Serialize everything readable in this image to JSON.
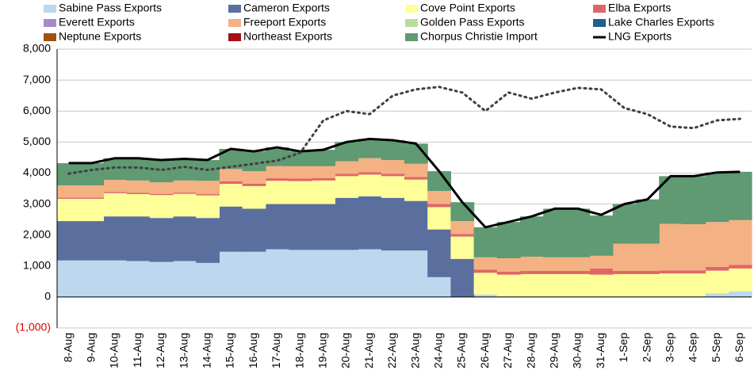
{
  "chart_data": {
    "type": "stacked-area-line",
    "categories": [
      "8-Aug",
      "9-Aug",
      "10-Aug",
      "11-Aug",
      "12-Aug",
      "13-Aug",
      "14-Aug",
      "15-Aug",
      "16-Aug",
      "17-Aug",
      "18-Aug",
      "19-Aug",
      "20-Aug",
      "21-Aug",
      "22-Aug",
      "23-Aug",
      "24-Aug",
      "25-Aug",
      "26-Aug",
      "27-Aug",
      "28-Aug",
      "29-Aug",
      "30-Aug",
      "31-Aug",
      "1-Sep",
      "2-Sep",
      "3-Sep",
      "4-Sep",
      "5-Sep",
      "6-Sep"
    ],
    "ylim": [
      -1000,
      8000
    ],
    "yticks": [
      {
        "value": -1000,
        "label": "(1,000)"
      },
      0,
      {
        "value": 1000,
        "label": "1,000"
      },
      {
        "value": 2000,
        "label": "2,000"
      },
      {
        "value": 3000,
        "label": "3,000"
      },
      {
        "value": 4000,
        "label": "4,000"
      },
      {
        "value": 5000,
        "label": "5,000"
      },
      {
        "value": 6000,
        "label": "6,000"
      },
      {
        "value": 7000,
        "label": "7,000"
      },
      {
        "value": 8000,
        "label": "8,000"
      }
    ],
    "grid": true,
    "legend": "top",
    "series": [
      {
        "name": "Sabine Pass Exports",
        "color": "#bdd7ee",
        "values": [
          1180,
          1180,
          1180,
          1160,
          1130,
          1160,
          1100,
          1460,
          1460,
          1540,
          1520,
          1520,
          1520,
          1540,
          1500,
          1500,
          640,
          0,
          80,
          20,
          20,
          20,
          20,
          20,
          20,
          20,
          20,
          20,
          120,
          180
        ]
      },
      {
        "name": "Cameron Exports",
        "color": "#5b6f9f",
        "values": [
          1270,
          1270,
          1420,
          1440,
          1420,
          1440,
          1450,
          1460,
          1390,
          1460,
          1480,
          1480,
          1680,
          1710,
          1700,
          1600,
          1540,
          1230,
          0,
          0,
          0,
          0,
          0,
          0,
          0,
          0,
          0,
          0,
          0,
          0
        ]
      },
      {
        "name": "Cove Point Exports",
        "color": "#ffff99",
        "values": [
          720,
          720,
          750,
          720,
          740,
          730,
          730,
          730,
          730,
          750,
          740,
          760,
          700,
          700,
          700,
          690,
          720,
          720,
          700,
          700,
          720,
          720,
          720,
          700,
          720,
          720,
          740,
          740,
          730,
          740
        ]
      },
      {
        "name": "Elba Exports",
        "color": "#e06666",
        "values": [
          40,
          40,
          40,
          40,
          40,
          40,
          40,
          80,
          80,
          80,
          80,
          80,
          80,
          80,
          80,
          80,
          100,
          80,
          100,
          100,
          100,
          100,
          100,
          200,
          100,
          100,
          100,
          100,
          120,
          120
        ]
      },
      {
        "name": "Everett Exports",
        "color": "#a68bc7",
        "values": [
          0,
          0,
          0,
          0,
          0,
          0,
          0,
          0,
          0,
          0,
          0,
          0,
          0,
          0,
          0,
          0,
          0,
          0,
          0,
          0,
          0,
          0,
          0,
          0,
          0,
          0,
          0,
          0,
          0,
          0
        ]
      },
      {
        "name": "Freeport Exports",
        "color": "#f4b183",
        "values": [
          390,
          390,
          390,
          400,
          370,
          390,
          430,
          400,
          400,
          390,
          400,
          380,
          400,
          450,
          440,
          430,
          420,
          420,
          400,
          430,
          460,
          440,
          440,
          410,
          880,
          880,
          1500,
          1490,
          1450,
          1440
        ]
      },
      {
        "name": "Golden Pass Exports",
        "color": "#b7de9a",
        "values": [
          0,
          0,
          0,
          0,
          0,
          0,
          0,
          0,
          0,
          0,
          0,
          0,
          0,
          0,
          0,
          0,
          0,
          0,
          0,
          0,
          0,
          0,
          0,
          0,
          0,
          0,
          0,
          0,
          0,
          0
        ]
      },
      {
        "name": "Lake Charles Exports",
        "color": "#1f5f8b",
        "values": [
          0,
          0,
          0,
          0,
          0,
          0,
          0,
          0,
          0,
          0,
          0,
          0,
          0,
          0,
          0,
          0,
          0,
          0,
          0,
          0,
          0,
          0,
          0,
          0,
          0,
          0,
          0,
          0,
          0,
          0
        ]
      },
      {
        "name": "Neptune Exports",
        "color": "#a0520f",
        "values": [
          0,
          0,
          0,
          0,
          0,
          0,
          0,
          0,
          0,
          0,
          0,
          0,
          0,
          0,
          0,
          0,
          0,
          0,
          0,
          0,
          0,
          0,
          0,
          0,
          0,
          0,
          0,
          0,
          0,
          0
        ]
      },
      {
        "name": "Northeast Exports",
        "color": "#a50f15",
        "values": [
          0,
          0,
          0,
          0,
          0,
          0,
          0,
          0,
          0,
          0,
          0,
          0,
          0,
          0,
          0,
          0,
          0,
          0,
          0,
          0,
          0,
          0,
          0,
          0,
          0,
          0,
          0,
          0,
          0,
          0
        ]
      },
      {
        "name": "Chorpus Christie Import",
        "color": "#5f9a72",
        "values": [
          720,
          720,
          700,
          720,
          720,
          700,
          670,
          650,
          640,
          610,
          480,
          530,
          620,
          620,
          640,
          650,
          640,
          610,
          970,
          1170,
          1300,
          1570,
          1570,
          1300,
          1280,
          1430,
          1540,
          1550,
          1600,
          1560
        ]
      },
      {
        "name": "LNG Exports",
        "color": "#000000",
        "type": "line",
        "values": [
          4320,
          4320,
          4480,
          4480,
          4420,
          4460,
          4420,
          4780,
          4700,
          4830,
          4700,
          4750,
          5000,
          5100,
          5060,
          4950,
          4060,
          3060,
          2250,
          2420,
          2600,
          2850,
          2850,
          2650,
          3000,
          3150,
          3900,
          3900,
          4020,
          4040
        ]
      },
      {
        "color": "#404040",
        "type": "dotted",
        "values": [
          3980,
          4100,
          4180,
          4180,
          4100,
          4200,
          4100,
          4200,
          4300,
          4400,
          4650,
          5700,
          6000,
          5900,
          6500,
          6700,
          6780,
          6600,
          6000,
          6600,
          6400,
          6600,
          6750,
          6700,
          6100,
          5900,
          5500,
          5450,
          5700,
          5750
        ]
      }
    ]
  }
}
